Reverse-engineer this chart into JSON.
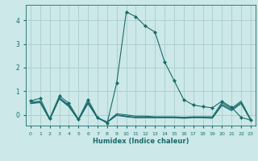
{
  "xlabel": "Humidex (Indice chaleur)",
  "bg_color": "#cce8e8",
  "grid_color": "#aacccc",
  "line_color": "#1a6b6b",
  "xlim": [
    -0.5,
    23.5
  ],
  "ylim": [
    -0.45,
    4.65
  ],
  "xticks": [
    0,
    1,
    2,
    3,
    4,
    5,
    6,
    7,
    8,
    9,
    10,
    11,
    12,
    13,
    14,
    15,
    16,
    17,
    18,
    19,
    20,
    21,
    22,
    23
  ],
  "yticks": [
    0,
    1,
    2,
    3,
    4
  ],
  "series": [
    {
      "x": [
        0,
        1,
        2,
        3,
        4,
        5,
        6,
        7,
        8,
        9,
        10,
        11,
        12,
        13,
        14,
        15,
        16,
        17,
        18,
        19,
        20,
        21,
        22,
        23
      ],
      "y": [
        0.6,
        0.7,
        -0.15,
        0.8,
        0.5,
        -0.18,
        0.65,
        -0.1,
        -0.35,
        1.35,
        4.35,
        4.15,
        3.75,
        3.5,
        2.25,
        1.45,
        0.65,
        0.42,
        0.35,
        0.3,
        0.58,
        0.32,
        -0.1,
        -0.22
      ],
      "marker": true
    },
    {
      "x": [
        0,
        1,
        2,
        3,
        4,
        5,
        6,
        7,
        8,
        9,
        10,
        11,
        12,
        13,
        14,
        15,
        16,
        17,
        18,
        19,
        20,
        21,
        22,
        23
      ],
      "y": [
        0.55,
        0.58,
        -0.18,
        0.72,
        0.42,
        -0.2,
        0.55,
        -0.12,
        -0.3,
        0.05,
        0.0,
        -0.05,
        -0.05,
        -0.08,
        -0.08,
        -0.08,
        -0.1,
        -0.08,
        -0.08,
        -0.08,
        0.52,
        0.28,
        0.58,
        -0.18
      ],
      "marker": false
    },
    {
      "x": [
        0,
        1,
        2,
        3,
        4,
        5,
        6,
        7,
        8,
        9,
        10,
        11,
        12,
        13,
        14,
        15,
        16,
        17,
        18,
        19,
        20,
        21,
        22,
        23
      ],
      "y": [
        0.5,
        0.55,
        -0.18,
        0.7,
        0.38,
        -0.2,
        0.5,
        -0.12,
        -0.3,
        0.0,
        -0.05,
        -0.1,
        -0.1,
        -0.1,
        -0.1,
        -0.1,
        -0.12,
        -0.1,
        -0.1,
        -0.12,
        0.45,
        0.22,
        0.52,
        -0.2
      ],
      "marker": false
    },
    {
      "x": [
        0,
        1,
        2,
        3,
        4,
        5,
        6,
        7,
        8,
        9,
        10,
        11,
        12,
        13,
        14,
        15,
        16,
        17,
        18,
        19,
        20,
        21,
        22,
        23
      ],
      "y": [
        0.48,
        0.52,
        -0.2,
        0.68,
        0.35,
        -0.22,
        0.48,
        -0.14,
        -0.32,
        -0.02,
        -0.08,
        -0.12,
        -0.12,
        -0.12,
        -0.12,
        -0.12,
        -0.14,
        -0.12,
        -0.12,
        -0.14,
        0.4,
        0.18,
        0.48,
        -0.22
      ],
      "marker": false
    }
  ]
}
